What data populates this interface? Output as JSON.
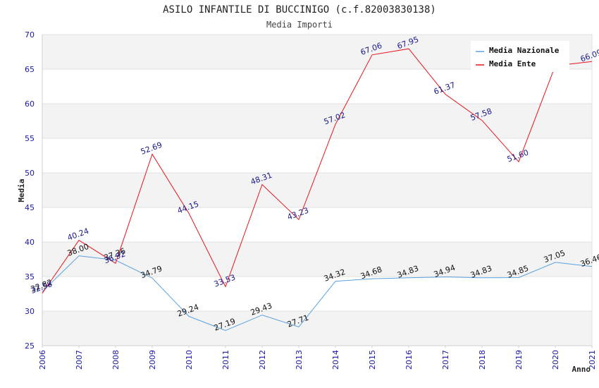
{
  "chart_data": {
    "type": "line",
    "title": "ASILO INFANTILE DI BUCCINIGO (c.f.82003830138)",
    "subtitle": "Media Importi",
    "xlabel": "Anno",
    "ylabel": "Media",
    "ylim": [
      25,
      70
    ],
    "yticks": [
      "25",
      "30",
      "35",
      "40",
      "45",
      "50",
      "55",
      "60",
      "65",
      "70"
    ],
    "categories": [
      "2006",
      "2007",
      "2008",
      "2009",
      "2010",
      "2011",
      "2012",
      "2013",
      "2014",
      "2015",
      "2016",
      "2017",
      "2018",
      "2019",
      "2020",
      "2021"
    ],
    "series": [
      {
        "name": "Media Nazionale",
        "color": "#5aa0e0",
        "label_color": "#111111",
        "values": [
          32.82,
          38.0,
          37.36,
          34.79,
          29.24,
          27.19,
          29.43,
          27.71,
          34.32,
          34.68,
          34.83,
          34.94,
          34.83,
          34.85,
          37.05,
          36.46
        ],
        "labels": [
          "32.82",
          "38.00",
          "37.36",
          "34.79",
          "29.24",
          "27.19",
          "29.43",
          "27.71",
          "34.32",
          "34.68",
          "34.83",
          "34.94",
          "34.83",
          "34.85",
          "37.05",
          "36.46"
        ]
      },
      {
        "name": "Media Ente",
        "color": "#e8141e",
        "label_color": "#1a1a8c",
        "values": [
          32.58,
          40.24,
          36.92,
          52.69,
          44.15,
          33.53,
          48.31,
          43.23,
          57.02,
          67.06,
          67.95,
          61.37,
          57.58,
          51.6,
          65.5,
          66.09
        ],
        "labels": [
          "32.58",
          "40.24",
          "36.92",
          "52.69",
          "44.15",
          "33.53",
          "48.31",
          "43.23",
          "57.02",
          "67.06",
          "67.95",
          "61.37",
          "57.58",
          "51.60",
          "",
          "66.09"
        ]
      }
    ],
    "grid": true,
    "band_colors": [
      "#f3f3f3",
      "#ffffff"
    ],
    "legend_position": "top-right"
  }
}
